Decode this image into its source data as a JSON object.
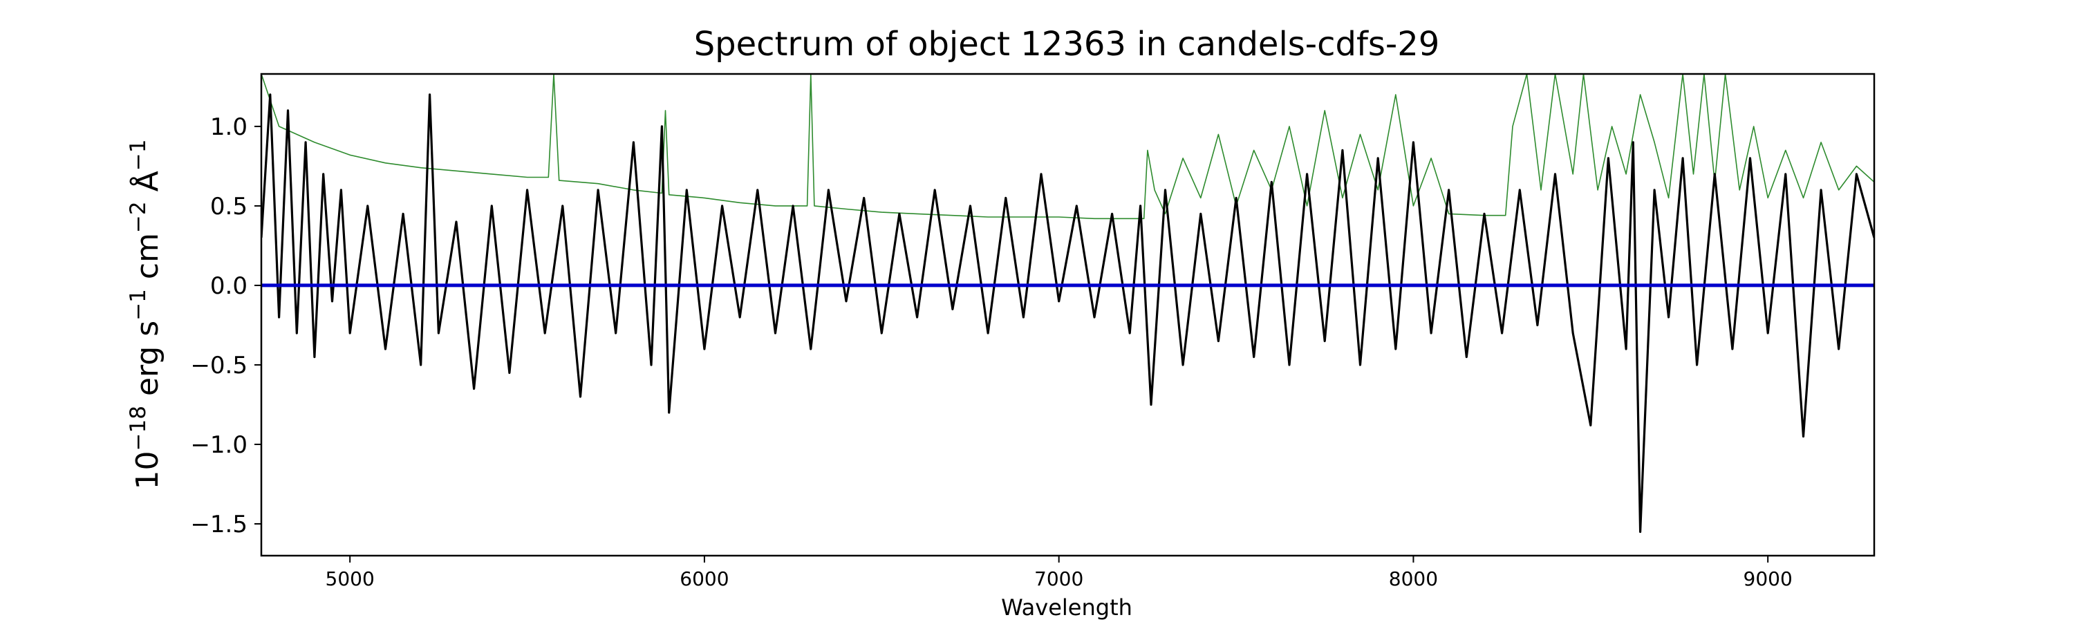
{
  "chart_data": {
    "type": "line",
    "title": "Spectrum of object 12363 in candels-cdfs-29",
    "xlabel": "Wavelength",
    "ylabel": {
      "base": "10",
      "base_exp": "−18",
      "unit_erg": " erg s",
      "s_exp": "−1",
      "unit_cm": " cm",
      "cm_exp": "−2",
      "unit_A": " Å",
      "A_exp": "−1"
    },
    "xlim": [
      4750,
      9300
    ],
    "ylim": [
      -1.7,
      1.33
    ],
    "xticks": [
      5000,
      6000,
      7000,
      8000,
      9000
    ],
    "yticks": [
      -1.5,
      -1.0,
      -0.5,
      0.0,
      0.5,
      1.0
    ],
    "xtick_labels": [
      "5000",
      "6000",
      "7000",
      "8000",
      "9000"
    ],
    "ytick_labels": [
      "−1.5",
      "−1.0",
      "−0.5",
      "0.0",
      "0.5",
      "1.0"
    ],
    "grid": false,
    "legend": "none",
    "series": [
      {
        "role": "zero-line",
        "color": "#0000cc",
        "x": [
          4750,
          9300
        ],
        "y": [
          0.0,
          0.0
        ]
      },
      {
        "role": "error-spectrum",
        "color": "#2e8b2e",
        "x": [
          4750,
          4800,
          4900,
          5000,
          5100,
          5200,
          5300,
          5400,
          5500,
          5560,
          5575,
          5590,
          5700,
          5800,
          5880,
          5890,
          5900,
          6000,
          6100,
          6200,
          6290,
          6300,
          6310,
          6400,
          6500,
          6600,
          6700,
          6800,
          6900,
          7000,
          7100,
          7200,
          7240,
          7250,
          7270,
          7300,
          7350,
          7400,
          7450,
          7500,
          7550,
          7600,
          7650,
          7700,
          7750,
          7800,
          7850,
          7900,
          7950,
          8000,
          8050,
          8100,
          8200,
          8260,
          8280,
          8320,
          8360,
          8400,
          8450,
          8480,
          8520,
          8560,
          8600,
          8640,
          8680,
          8720,
          8760,
          8790,
          8820,
          8850,
          8880,
          8920,
          8960,
          9000,
          9050,
          9100,
          9150,
          9200,
          9250,
          9300
        ],
        "y": [
          1.33,
          1.0,
          0.9,
          0.82,
          0.77,
          0.74,
          0.72,
          0.7,
          0.68,
          0.68,
          1.33,
          0.66,
          0.64,
          0.6,
          0.58,
          1.1,
          0.57,
          0.55,
          0.52,
          0.5,
          0.5,
          1.33,
          0.5,
          0.48,
          0.46,
          0.45,
          0.44,
          0.43,
          0.43,
          0.43,
          0.42,
          0.42,
          0.42,
          0.85,
          0.6,
          0.45,
          0.8,
          0.55,
          0.95,
          0.5,
          0.85,
          0.6,
          1.0,
          0.5,
          1.1,
          0.55,
          0.95,
          0.6,
          1.2,
          0.5,
          0.8,
          0.45,
          0.44,
          0.44,
          1.0,
          1.33,
          0.6,
          1.33,
          0.7,
          1.33,
          0.6,
          1.0,
          0.7,
          1.2,
          0.9,
          0.55,
          1.33,
          0.7,
          1.33,
          0.65,
          1.33,
          0.6,
          1.0,
          0.55,
          0.85,
          0.55,
          0.9,
          0.6,
          0.75,
          0.65
        ]
      },
      {
        "role": "flux",
        "color": "#000000",
        "x": [
          4750,
          4775,
          4800,
          4825,
          4850,
          4875,
          4900,
          4925,
          4950,
          4975,
          5000,
          5050,
          5100,
          5150,
          5200,
          5225,
          5250,
          5300,
          5350,
          5400,
          5450,
          5500,
          5550,
          5600,
          5650,
          5700,
          5750,
          5800,
          5850,
          5880,
          5900,
          5950,
          6000,
          6050,
          6100,
          6150,
          6200,
          6250,
          6300,
          6350,
          6400,
          6450,
          6500,
          6550,
          6600,
          6650,
          6700,
          6750,
          6800,
          6850,
          6900,
          6950,
          7000,
          7050,
          7100,
          7150,
          7200,
          7230,
          7260,
          7300,
          7350,
          7400,
          7450,
          7500,
          7550,
          7600,
          7650,
          7700,
          7750,
          7800,
          7850,
          7900,
          7950,
          8000,
          8050,
          8100,
          8150,
          8200,
          8250,
          8300,
          8350,
          8400,
          8450,
          8500,
          8550,
          8600,
          8620,
          8640,
          8680,
          8720,
          8760,
          8800,
          8850,
          8900,
          8950,
          9000,
          9050,
          9100,
          9150,
          9200,
          9250,
          9300
        ],
        "y": [
          0.3,
          1.2,
          -0.2,
          1.1,
          -0.3,
          0.9,
          -0.45,
          0.7,
          -0.1,
          0.6,
          -0.3,
          0.5,
          -0.4,
          0.45,
          -0.5,
          1.2,
          -0.3,
          0.4,
          -0.65,
          0.5,
          -0.55,
          0.6,
          -0.3,
          0.5,
          -0.7,
          0.6,
          -0.3,
          0.9,
          -0.5,
          1.0,
          -0.8,
          0.6,
          -0.4,
          0.5,
          -0.2,
          0.6,
          -0.3,
          0.5,
          -0.4,
          0.6,
          -0.1,
          0.55,
          -0.3,
          0.45,
          -0.2,
          0.6,
          -0.15,
          0.5,
          -0.3,
          0.55,
          -0.2,
          0.7,
          -0.1,
          0.5,
          -0.2,
          0.45,
          -0.3,
          0.5,
          -0.75,
          0.6,
          -0.5,
          0.45,
          -0.35,
          0.55,
          -0.45,
          0.65,
          -0.5,
          0.7,
          -0.35,
          0.85,
          -0.5,
          0.8,
          -0.4,
          0.9,
          -0.3,
          0.6,
          -0.45,
          0.45,
          -0.3,
          0.6,
          -0.25,
          0.7,
          -0.3,
          -0.88,
          0.8,
          -0.4,
          0.9,
          -1.55,
          0.6,
          -0.2,
          0.8,
          -0.5,
          0.7,
          -0.4,
          0.8,
          -0.3,
          0.7,
          -0.95,
          0.6,
          -0.4,
          0.7,
          0.3
        ]
      }
    ]
  }
}
